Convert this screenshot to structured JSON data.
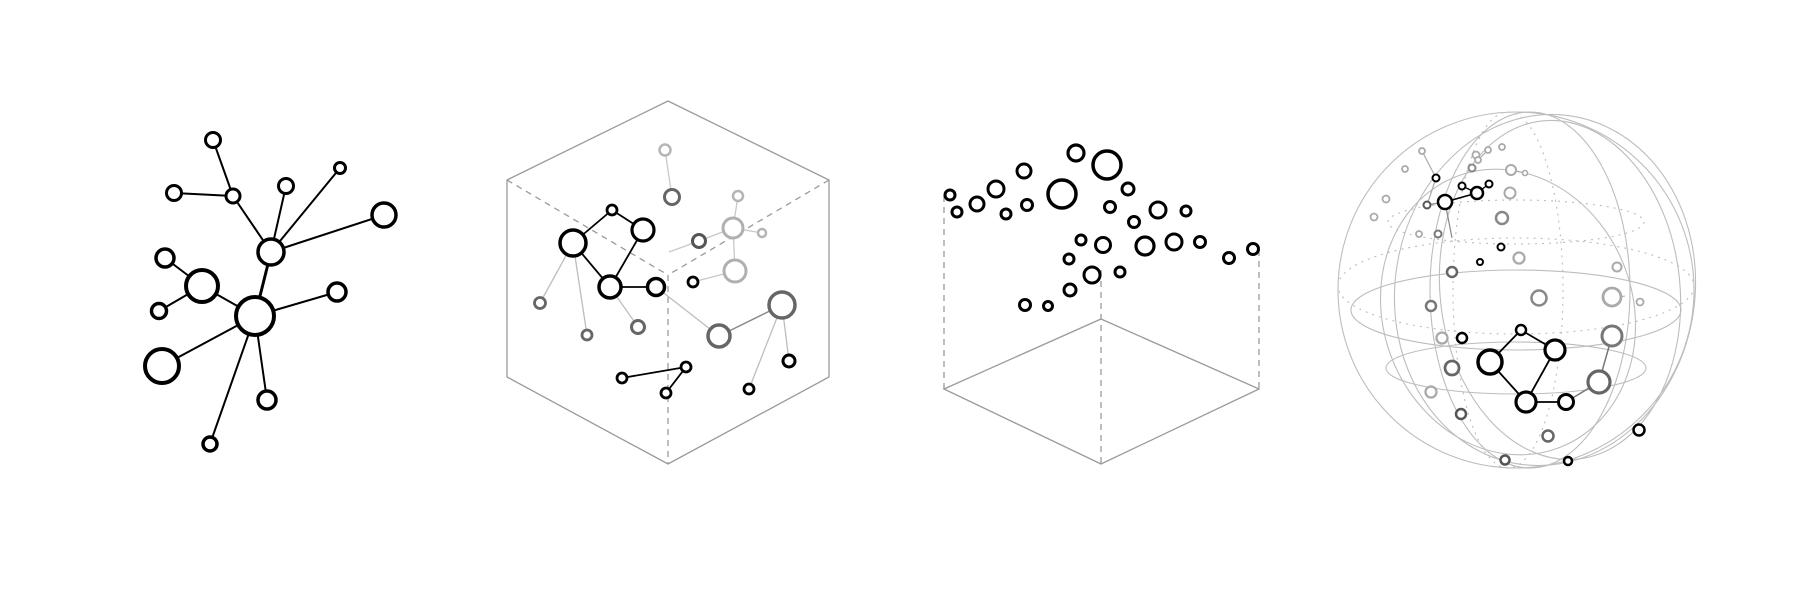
{
  "figure": {
    "description_free": true,
    "panels": [
      {
        "id": "planar-network",
        "kind": "2d-graph"
      },
      {
        "id": "network-in-cube",
        "kind": "3d-graph-in-box"
      },
      {
        "id": "points-above-plane",
        "kind": "projected-scatter"
      },
      {
        "id": "network-in-sphere",
        "kind": "spherical-graph"
      }
    ]
  },
  "colors": {
    "ink": "#000000",
    "dark_gray": "#555555",
    "mid_gray": "#888888",
    "light_gray": "#b0b0b0",
    "frame": "#9a9a9a",
    "background": "#ffffff"
  },
  "icons": [
    "network-node",
    "network-edge"
  ]
}
